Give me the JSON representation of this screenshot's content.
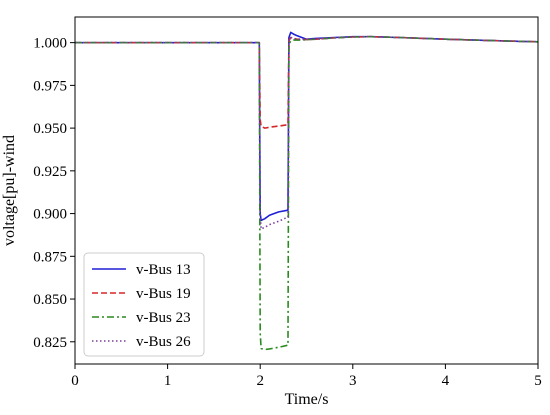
{
  "chart_data": {
    "type": "line",
    "xlabel": "Time/s",
    "ylabel": "voltage[pu]-wind",
    "xlim": [
      0,
      5
    ],
    "ylim": [
      0.812,
      1.015
    ],
    "xticks": [
      0,
      1,
      2,
      3,
      4,
      5
    ],
    "xtick_labels": [
      "0",
      "1",
      "2",
      "3",
      "4",
      "5"
    ],
    "yticks": [
      0.825,
      0.85,
      0.875,
      0.9,
      0.925,
      0.95,
      0.975,
      1.0
    ],
    "ytick_labels": [
      "0.825",
      "0.850",
      "0.875",
      "0.900",
      "0.925",
      "0.950",
      "0.975",
      "1.000"
    ],
    "grid": false,
    "legend_position": "lower-left",
    "series": [
      {
        "name": "v-Bus 13",
        "color": "#1f1fd6",
        "style": "solid",
        "x": [
          0,
          1.99,
          2.0,
          2.01,
          2.05,
          2.1,
          2.2,
          2.3,
          2.31,
          2.33,
          2.36,
          2.4,
          2.45,
          2.5,
          2.6,
          2.8,
          3.0,
          3.2,
          3.5,
          4.0,
          4.5,
          5.0
        ],
        "y": [
          1.0,
          1.0,
          0.9,
          0.896,
          0.897,
          0.899,
          0.901,
          0.902,
          1.003,
          1.006,
          1.005,
          1.004,
          1.003,
          1.002,
          1.0025,
          1.003,
          1.0035,
          1.0035,
          1.003,
          1.002,
          1.0012,
          1.0005
        ]
      },
      {
        "name": "v-Bus 19",
        "color": "#d62728",
        "style": "dashed",
        "x": [
          0,
          1.99,
          2.0,
          2.01,
          2.05,
          2.1,
          2.2,
          2.3,
          2.31,
          2.33,
          2.36,
          2.4,
          2.45,
          2.5,
          2.6,
          2.8,
          3.0,
          3.2,
          3.5,
          4.0,
          4.5,
          5.0
        ],
        "y": [
          1.0,
          1.0,
          0.955,
          0.951,
          0.95,
          0.9505,
          0.9512,
          0.952,
          1.001,
          1.003,
          1.0025,
          1.002,
          1.0018,
          1.0018,
          1.002,
          1.0028,
          1.0033,
          1.0035,
          1.003,
          1.002,
          1.0012,
          1.0005
        ]
      },
      {
        "name": "v-Bus 23",
        "color": "#2a8a1f",
        "style": "dashdot",
        "x": [
          0,
          1.99,
          2.0,
          2.01,
          2.05,
          2.1,
          2.2,
          2.3,
          2.31,
          2.33,
          2.36,
          2.4,
          2.45,
          2.5,
          2.6,
          2.8,
          3.0,
          3.2,
          3.5,
          4.0,
          4.5,
          5.0
        ],
        "y": [
          1.0,
          1.0,
          0.83,
          0.821,
          0.8205,
          0.8208,
          0.8218,
          0.823,
          0.999,
          1.001,
          1.0015,
          1.0015,
          1.0015,
          1.0017,
          1.002,
          1.0028,
          1.0033,
          1.0035,
          1.003,
          1.002,
          1.0012,
          1.0005
        ]
      },
      {
        "name": "v-Bus 26",
        "color": "#7b3f9e",
        "style": "dotted",
        "x": [
          0,
          1.99,
          2.0,
          2.01,
          2.05,
          2.1,
          2.2,
          2.3,
          2.31,
          2.33,
          2.36,
          2.4,
          2.45,
          2.5,
          2.6,
          2.8,
          3.0,
          3.2,
          3.5,
          4.0,
          4.5,
          5.0
        ],
        "y": [
          1.0,
          1.0,
          0.9,
          0.891,
          0.892,
          0.8935,
          0.8955,
          0.898,
          1.001,
          1.003,
          1.0025,
          1.002,
          1.002,
          1.0018,
          1.002,
          1.0028,
          1.0033,
          1.0035,
          1.003,
          1.002,
          1.0012,
          1.0005
        ]
      }
    ]
  }
}
